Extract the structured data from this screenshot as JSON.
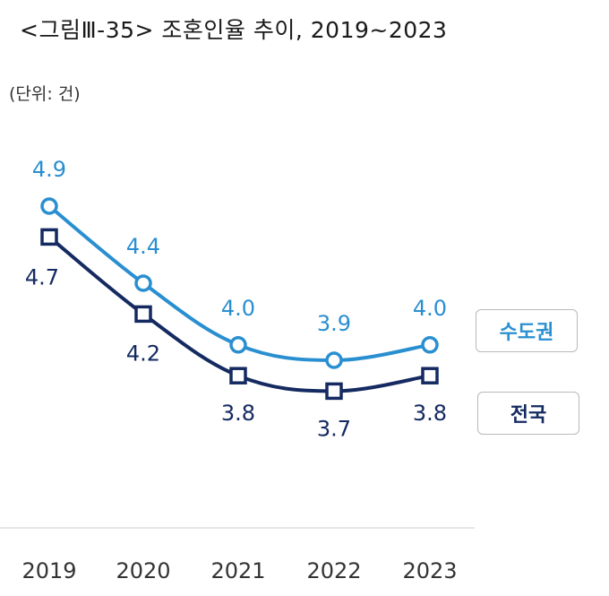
{
  "title": "<그림Ⅲ-35> 조혼인율 추이, 2019~2023",
  "unit_label": "(단위: 건)",
  "colors": {
    "capital": "#2a8fd0",
    "national": "#142a61",
    "axis": "#dddddd"
  },
  "chart_data": {
    "type": "line",
    "title": "<그림Ⅲ-35> 조혼인율 추이, 2019~2023",
    "categories": [
      "2019",
      "2020",
      "2021",
      "2022",
      "2023"
    ],
    "series": [
      {
        "name": "수도권",
        "values": [
          4.9,
          4.4,
          4.0,
          3.9,
          4.0
        ],
        "value_labels": [
          "4.9",
          "4.4",
          "4.0",
          "3.9",
          "4.0"
        ],
        "marker": "circle"
      },
      {
        "name": "전국",
        "values": [
          4.7,
          4.2,
          3.8,
          3.7,
          3.8
        ],
        "value_labels": [
          "4.7",
          "4.2",
          "3.8",
          "3.7",
          "3.8"
        ],
        "marker": "square"
      }
    ],
    "legend": "right",
    "grid": false
  }
}
